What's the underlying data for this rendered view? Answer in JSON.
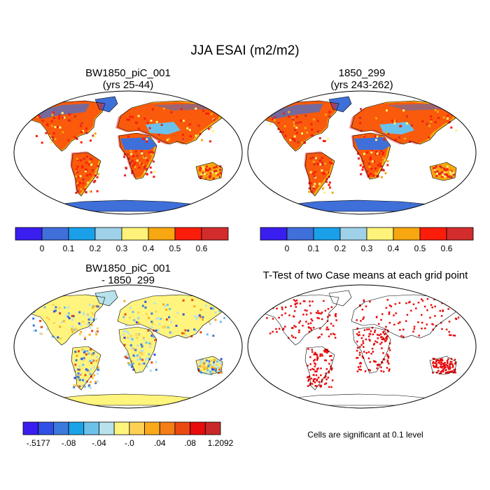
{
  "figure": {
    "title": "JJA ESAI (m2/m2)"
  },
  "panels": {
    "top_left": {
      "title_line1": "BW1850_piC_001",
      "title_line2": "(yrs 25-44)"
    },
    "top_right": {
      "title_line1": "1850_299",
      "title_line2": "(yrs 243-262)"
    },
    "bottom_left": {
      "title_line1": "BW1850_piC_001",
      "title_line2": "- 1850_299"
    },
    "bottom_right": {
      "title_line1": "T-Test of two Case means at each grid point"
    }
  },
  "colorbars": {
    "absolute": {
      "colors": [
        "#3a1ef0",
        "#3f6fd8",
        "#1aa0e8",
        "#9fd2e8",
        "#fff27a",
        "#f7a70f",
        "#fb1c0a",
        "#d32c2c"
      ],
      "labels": [
        "0",
        "0.1",
        "0.2",
        "0.3",
        "0.4",
        "0.5",
        "0.6"
      ]
    },
    "difference": {
      "colors": [
        "#3a1ef0",
        "#2f4fe6",
        "#3b79dd",
        "#1ba3ea",
        "#6cc1eb",
        "#b7e2ec",
        "#fff47d",
        "#fed154",
        "#f9a91a",
        "#f47d16",
        "#ea4a10",
        "#e80c0c",
        "#c82828"
      ],
      "labels": [
        "-.5177",
        "-.08",
        "-.04",
        "-.0",
        ".04",
        ".08",
        "1.2092"
      ]
    }
  },
  "note": "Cells are significant at 0.1 level",
  "map_colors": {
    "ocean": "#ffffff",
    "low": "#3f6fd8",
    "mid": "#f7a70f",
    "high": "#fb1c0a",
    "diff_base": "#fff47d",
    "diff_cool": "#b7e2ec",
    "signif": "#e80c0c"
  }
}
